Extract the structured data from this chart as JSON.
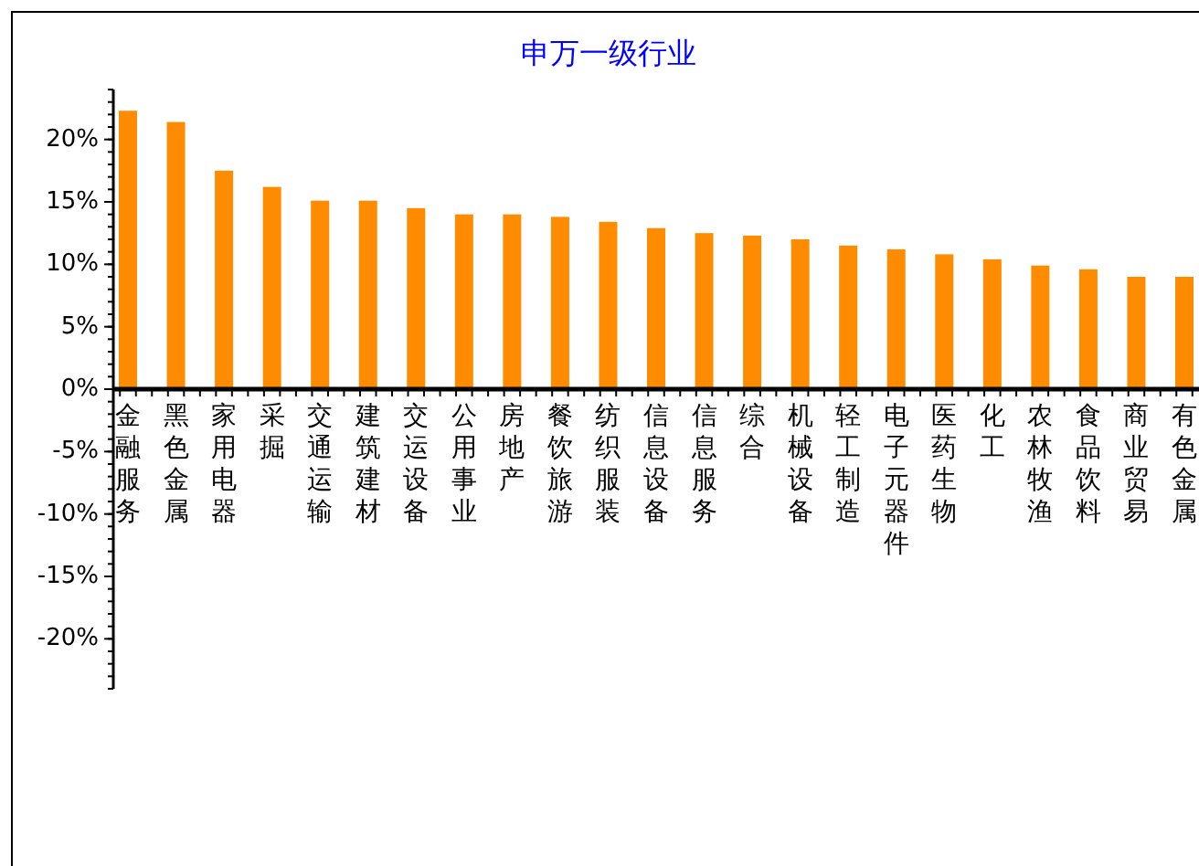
{
  "chart_data": {
    "type": "bar",
    "title": "申万一级行业",
    "categories": [
      "金融服务",
      "黑色金属",
      "家用电器",
      "采掘",
      "交通运输",
      "建筑建材",
      "交运设备",
      "公用事业",
      "房地产",
      "餐饮旅游",
      "纺织服装",
      "信息设备",
      "信息服务",
      "综合",
      "机械设备",
      "轻工制造",
      "电子元器件",
      "医药生物",
      "化工",
      "农林牧渔",
      "食品饮料",
      "商业贸易",
      "有色金属"
    ],
    "values": [
      22.3,
      21.4,
      17.5,
      16.2,
      15.1,
      15.1,
      14.5,
      14.0,
      14.0,
      13.8,
      13.4,
      12.9,
      12.5,
      12.3,
      12.0,
      11.5,
      11.2,
      10.8,
      10.4,
      9.9,
      9.6,
      9.0,
      9.0
    ],
    "color": "#ff8c00",
    "ylim": [
      -24,
      24
    ],
    "yticks": [
      {
        "value": -20,
        "label": "-20%"
      },
      {
        "value": -15,
        "label": "-15%"
      },
      {
        "value": -10,
        "label": "-10%"
      },
      {
        "value": -5,
        "label": "-5%"
      },
      {
        "value": 0,
        "label": "0%"
      },
      {
        "value": 5,
        "label": "5%"
      },
      {
        "value": 10,
        "label": "10%"
      },
      {
        "value": 15,
        "label": "15%"
      },
      {
        "value": 20,
        "label": "20%"
      }
    ]
  }
}
